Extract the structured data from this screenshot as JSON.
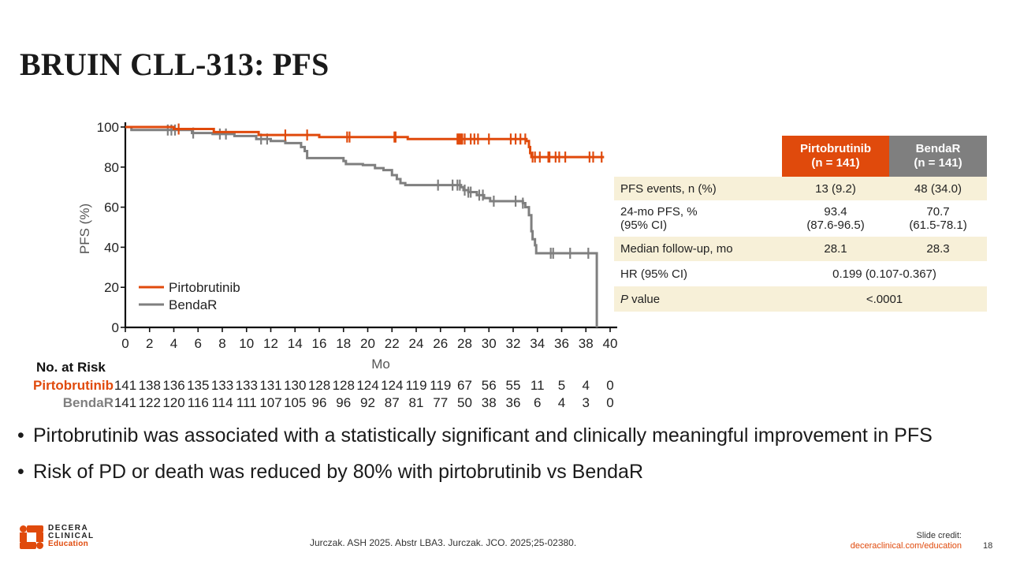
{
  "slide": {
    "title": "BRUIN CLL-313: PFS",
    "page_number": "18"
  },
  "chart_data": {
    "type": "line",
    "subtype": "kaplan-meier",
    "title": "",
    "xlabel": "Mo",
    "ylabel": "PFS (%)",
    "xlim": [
      0,
      40
    ],
    "ylim": [
      0,
      100
    ],
    "x_ticks": [
      "0",
      "2",
      "4",
      "6",
      "8",
      "10",
      "12",
      "14",
      "16",
      "18",
      "20",
      "22",
      "24",
      "26",
      "28",
      "30",
      "32",
      "34",
      "36",
      "38",
      "40"
    ],
    "y_ticks": [
      "0",
      "20",
      "40",
      "60",
      "80",
      "100"
    ],
    "grid": false,
    "legend_position": "bottom-left",
    "series": [
      {
        "name": "Pirtobrutinib",
        "color": "#e04a0c",
        "steps": [
          [
            0,
            100
          ],
          [
            4.0,
            99
          ],
          [
            7.3,
            97.5
          ],
          [
            11.0,
            96
          ],
          [
            16.0,
            95
          ],
          [
            23.3,
            94
          ],
          [
            33.1,
            93
          ],
          [
            33.3,
            90
          ],
          [
            33.4,
            87
          ],
          [
            33.5,
            85
          ],
          [
            39.5,
            85
          ]
        ],
        "censor_times": [
          4.4,
          13.2,
          15.0,
          18.3,
          18.5,
          22.2,
          22.3,
          27.4,
          27.5,
          27.6,
          27.7,
          27.8,
          28.0,
          28.5,
          28.8,
          29.1,
          30.0,
          31.8,
          32.2,
          32.6,
          33.0,
          33.6,
          33.8,
          34.2,
          34.9,
          35.0,
          35.5,
          35.8,
          36.3,
          38.3,
          38.6,
          39.3
        ]
      },
      {
        "name": "BendaR",
        "color": "#7f7f7f",
        "steps": [
          [
            0,
            100
          ],
          [
            0.5,
            98.5
          ],
          [
            5.5,
            97
          ],
          [
            7.2,
            96.5
          ],
          [
            9.0,
            95.5
          ],
          [
            10.8,
            94
          ],
          [
            12.0,
            93
          ],
          [
            13.2,
            92
          ],
          [
            14.5,
            90
          ],
          [
            14.8,
            88
          ],
          [
            15.0,
            84.5
          ],
          [
            18.0,
            83
          ],
          [
            18.2,
            81.5
          ],
          [
            19.6,
            81
          ],
          [
            20.6,
            79.5
          ],
          [
            21.3,
            78.5
          ],
          [
            22.0,
            76
          ],
          [
            22.4,
            74
          ],
          [
            22.7,
            72
          ],
          [
            23.1,
            71
          ],
          [
            27.7,
            70
          ],
          [
            27.9,
            68.5
          ],
          [
            28.3,
            67.5
          ],
          [
            29.0,
            66
          ],
          [
            29.6,
            64.5
          ],
          [
            30.1,
            63
          ],
          [
            32.8,
            62
          ],
          [
            33.0,
            60
          ],
          [
            33.3,
            56
          ],
          [
            33.5,
            48
          ],
          [
            33.6,
            44
          ],
          [
            33.8,
            41
          ],
          [
            33.9,
            37
          ],
          [
            38.9,
            37
          ],
          [
            38.9,
            0
          ]
        ],
        "censor_times": [
          3.5,
          3.8,
          4.1,
          5.6,
          7.8,
          8.3,
          11.2,
          11.7,
          25.8,
          27.0,
          27.4,
          27.6,
          28.0,
          28.3,
          28.5,
          29.2,
          29.5,
          30.4,
          32.2,
          32.8,
          35.1,
          35.3,
          36.7,
          38.2
        ]
      }
    ],
    "number_at_risk": {
      "title": "No. at Risk",
      "times": [
        0,
        2,
        4,
        6,
        8,
        10,
        12,
        14,
        16,
        18,
        20,
        22,
        24,
        26,
        28,
        30,
        32,
        34,
        36,
        38,
        40
      ],
      "rows": [
        {
          "label": "Pirtobrutinib",
          "color": "#e04a0c",
          "values": [
            "141",
            "138",
            "136",
            "135",
            "133",
            "133",
            "131",
            "130",
            "128",
            "128",
            "124",
            "124",
            "119",
            "119",
            "67",
            "56",
            "55",
            "11",
            "5",
            "4",
            "0"
          ]
        },
        {
          "label": "BendaR",
          "color": "#7f7f7f",
          "values": [
            "141",
            "122",
            "120",
            "116",
            "114",
            "111",
            "107",
            "105",
            "96",
            "96",
            "92",
            "87",
            "81",
            "77",
            "50",
            "38",
            "36",
            "6",
            "4",
            "3",
            "0"
          ]
        }
      ]
    }
  },
  "summary_table": {
    "headers": [
      {
        "line1": "Pirtobrutinib",
        "line2": "(n = 141)",
        "color": "#e04a0c"
      },
      {
        "line1": "BendaR",
        "line2": "(n = 141)",
        "color": "#7f7f7f"
      }
    ],
    "rows": [
      {
        "label": "PFS events, n (%)",
        "pirto": "13 (9.2)",
        "benda": "48 (34.0)"
      },
      {
        "label_line1": "24-mo PFS, %",
        "label_line2": "(95% CI)",
        "pirto_line1": "93.4",
        "pirto_line2": "(87.6-96.5)",
        "benda_line1": "70.7",
        "benda_line2": "(61.5-78.1)"
      },
      {
        "label": "Median follow-up, mo",
        "pirto": "28.1",
        "benda": "28.3"
      },
      {
        "label": "HR (95% CI)",
        "combined": "0.199 (0.107-0.367)"
      },
      {
        "label_italic": "P",
        "label_rest": " value",
        "combined": "<.0001"
      }
    ]
  },
  "bullets": [
    "Pirtobrutinib was associated with a statistically significant and clinically meaningful improvement in PFS",
    "Risk of PD or death was reduced by 80% with pirtobrutinib vs BendaR"
  ],
  "footer": {
    "logo_line1": "DECERA",
    "logo_line2": "CLINICAL",
    "logo_line3": "Education",
    "citation": "Jurczak. ASH 2025. Abstr LBA3. Jurczak. JCO. 2025;25-02380.",
    "credit_label": "Slide credit:",
    "credit_url": "deceraclinical.com/education"
  },
  "colors": {
    "accent": "#e04a0c",
    "gray": "#7f7f7f",
    "table_shade": "#f7f0d8"
  }
}
